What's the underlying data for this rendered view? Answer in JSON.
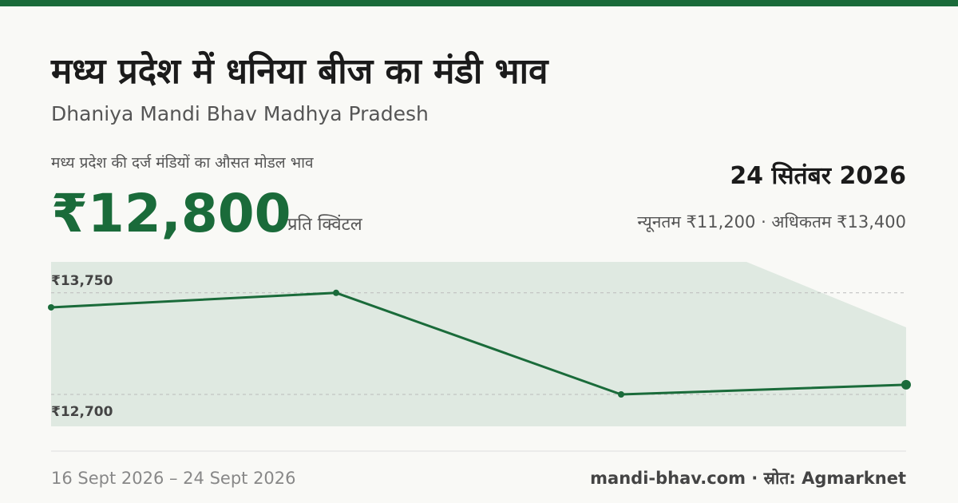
{
  "chart_data": {
    "type": "line",
    "title": "मध्य प्रदेश में धनिया बीज का मंडी भाव",
    "subtitle": "Dhaniya Mandi Bhav Madhya Pradesh",
    "caption": "मध्य प्रदेश की दर्ज मंडियों का औसत मोडल भाव",
    "price": "₹12,800",
    "unit": "प्रति क्विंटल",
    "date": "24 सितंबर 2026",
    "range_text": "न्यूनतम ₹11,200 · अधिकतम ₹13,400",
    "date_range": "16 Sept 2026 – 24 Sept 2026",
    "source": "mandi-bhav.com · स्रोत: Agmarknet",
    "values": [
      13600,
      13750,
      12700,
      12800
    ],
    "color": "#1a6b3a",
    "ylim": [
      12370,
      14070
    ],
    "yticks": [
      {
        "value": 12700,
        "label": "₹12,700"
      },
      {
        "value": 13750,
        "label": "₹13,750"
      }
    ],
    "grid": true
  }
}
